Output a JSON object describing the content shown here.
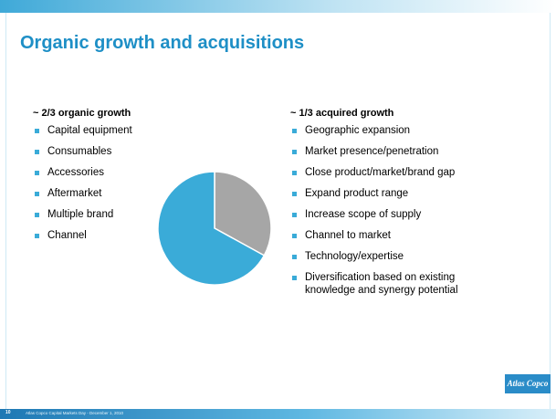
{
  "title": "Organic growth and acquisitions",
  "left": {
    "heading": "~ 2/3 organic growth",
    "items": [
      "Capital equipment",
      "Consumables",
      "Accessories",
      "Aftermarket",
      "Multiple brand",
      "Channel"
    ]
  },
  "right": {
    "heading": "~ 1/3 acquired growth",
    "items": [
      "Geographic expansion",
      "Market presence/penetration",
      "Close product/market/brand gap",
      "Expand product range",
      "Increase scope of supply",
      "Channel to market",
      "Technology/expertise",
      "Diversification based on existing knowledge and synergy potential"
    ]
  },
  "footer": {
    "page": "10",
    "text": "Atlas Copco Capital Markets Day - December 1, 2010"
  },
  "logo": "Atlas Copco",
  "chart_data": {
    "type": "pie",
    "values": [
      33,
      67
    ],
    "colors": [
      "#a6a6a6",
      "#3aabd8"
    ]
  }
}
